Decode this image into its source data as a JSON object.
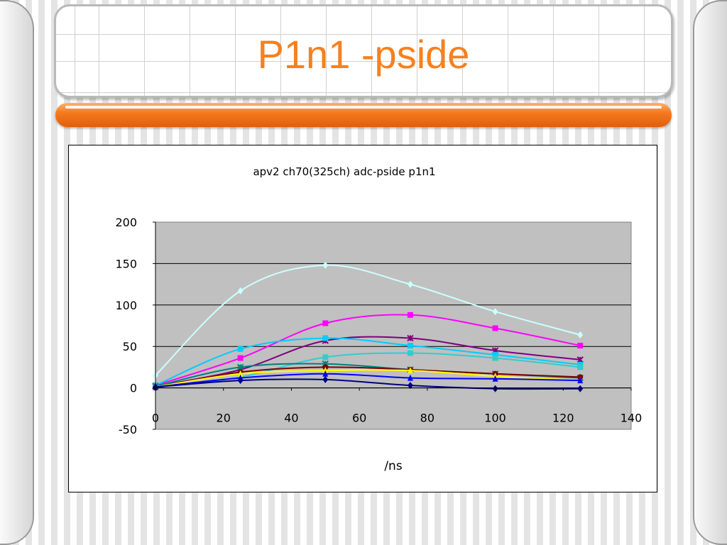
{
  "slide": {
    "title": "P1n1 -pside"
  },
  "chart_data": {
    "type": "line",
    "title": "apv2 ch70(325ch) adc-pside p1n1",
    "xlabel": "/ns",
    "ylabel": "",
    "xlim": [
      0,
      140
    ],
    "ylim": [
      -50,
      200
    ],
    "x_ticks": [
      "0",
      "20",
      "40",
      "60",
      "80",
      "100",
      "120",
      "140"
    ],
    "y_ticks": [
      "200",
      "150",
      "100",
      "50",
      "0",
      "-50"
    ],
    "grid": "horizontal",
    "plot_background": "#c0c0c0",
    "x": [
      0,
      25,
      50,
      75,
      100,
      125
    ],
    "series": [
      {
        "color": "#ccffff",
        "marker": "diamond",
        "values": [
          15,
          117,
          148,
          125,
          92,
          64
        ]
      },
      {
        "color": "#ff00ff",
        "marker": "square",
        "values": [
          3,
          36,
          78,
          88,
          72,
          51
        ]
      },
      {
        "color": "#800080",
        "marker": "x",
        "values": [
          2,
          22,
          57,
          60,
          45,
          34
        ]
      },
      {
        "color": "#00ccff",
        "marker": "square",
        "values": [
          3,
          47,
          60,
          51,
          40,
          28
        ]
      },
      {
        "color": "#33cccc",
        "marker": "square",
        "values": [
          1,
          13,
          37,
          42,
          36,
          25
        ]
      },
      {
        "color": "#008080",
        "marker": "x",
        "values": [
          2,
          25,
          29,
          22,
          17,
          12
        ]
      },
      {
        "color": "#800000",
        "marker": "circle",
        "values": [
          0,
          19,
          25,
          22,
          17,
          13
        ]
      },
      {
        "color": "#ffff00",
        "marker": "triangle",
        "values": [
          1,
          17,
          21,
          21,
          14,
          9
        ]
      },
      {
        "color": "#0000ff",
        "marker": "triangle",
        "values": [
          1,
          12,
          17,
          12,
          11,
          9
        ]
      },
      {
        "color": "#000080",
        "marker": "diamond",
        "values": [
          1,
          9,
          10,
          3,
          -1,
          -1
        ]
      }
    ]
  }
}
